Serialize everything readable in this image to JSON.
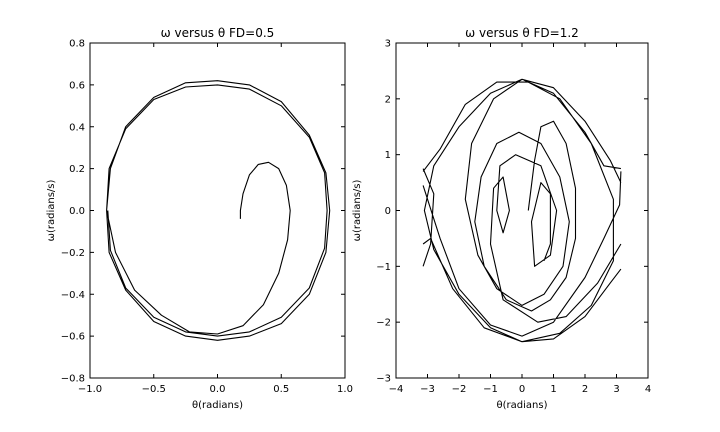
{
  "chart_data": [
    {
      "type": "line",
      "title": "ω   versus   θ   FD=0.5",
      "xlabel": "θ(radians)",
      "ylabel": "ω(radians/s)",
      "xlim": [
        -1.0,
        1.0
      ],
      "ylim": [
        -0.8,
        0.8
      ],
      "xticks": [
        -1.0,
        -0.5,
        0.0,
        0.5,
        1.0
      ],
      "xtick_labels": [
        "−1.0",
        "−0.5",
        "0.0",
        "0.5",
        "1.0"
      ],
      "yticks": [
        -0.8,
        -0.6,
        -0.4,
        -0.2,
        0.0,
        0.2,
        0.4,
        0.6,
        0.8
      ],
      "ytick_labels": [
        "−0.8",
        "−0.6",
        "−0.4",
        "−0.2",
        "0.0",
        "0.2",
        "0.4",
        "0.6",
        "0.8"
      ],
      "grid": false,
      "series": [
        {
          "color": "#000000",
          "description_points": [
            [
              0.18,
              -0.04
            ],
            [
              0.18,
              0.0
            ],
            [
              0.2,
              0.08
            ],
            [
              0.25,
              0.17
            ],
            [
              0.32,
              0.22
            ],
            [
              0.4,
              0.23
            ],
            [
              0.48,
              0.2
            ],
            [
              0.54,
              0.12
            ],
            [
              0.57,
              0.0
            ],
            [
              0.55,
              -0.14
            ],
            [
              0.48,
              -0.3
            ],
            [
              0.36,
              -0.45
            ],
            [
              0.2,
              -0.55
            ],
            [
              0.0,
              -0.59
            ],
            [
              -0.22,
              -0.58
            ],
            [
              -0.44,
              -0.5
            ],
            [
              -0.65,
              -0.38
            ],
            [
              -0.8,
              -0.2
            ],
            [
              -0.87,
              0.0
            ],
            [
              -0.84,
              0.2
            ],
            [
              -0.72,
              0.4
            ],
            [
              -0.5,
              0.54
            ],
            [
              -0.25,
              0.61
            ],
            [
              0.0,
              0.62
            ],
            [
              0.25,
              0.6
            ],
            [
              0.5,
              0.52
            ],
            [
              0.72,
              0.36
            ],
            [
              0.85,
              0.18
            ],
            [
              0.88,
              0.0
            ],
            [
              0.85,
              -0.2
            ],
            [
              0.72,
              -0.4
            ],
            [
              0.5,
              -0.54
            ],
            [
              0.25,
              -0.6
            ],
            [
              0.0,
              -0.62
            ],
            [
              -0.25,
              -0.6
            ],
            [
              -0.5,
              -0.53
            ],
            [
              -0.72,
              -0.38
            ],
            [
              -0.85,
              -0.2
            ],
            [
              -0.87,
              0.0
            ],
            [
              -0.85,
              0.2
            ],
            [
              -0.72,
              0.39
            ],
            [
              -0.5,
              0.53
            ],
            [
              -0.25,
              0.59
            ],
            [
              0.0,
              0.6
            ],
            [
              0.25,
              0.58
            ],
            [
              0.5,
              0.5
            ],
            [
              0.72,
              0.35
            ],
            [
              0.84,
              0.18
            ],
            [
              0.86,
              0.0
            ],
            [
              0.84,
              -0.18
            ],
            [
              0.72,
              -0.37
            ],
            [
              0.5,
              -0.51
            ],
            [
              0.25,
              -0.58
            ],
            [
              0.0,
              -0.6
            ],
            [
              -0.25,
              -0.58
            ],
            [
              -0.5,
              -0.51
            ],
            [
              -0.72,
              -0.37
            ],
            [
              -0.84,
              -0.19
            ],
            [
              -0.86,
              0.0
            ]
          ]
        }
      ]
    },
    {
      "type": "line",
      "title": "ω   versus   θ   FD=1.2",
      "xlabel": "θ(radians)",
      "ylabel": "ω(radians/s)",
      "xlim": [
        -4,
        4
      ],
      "ylim": [
        -3,
        3
      ],
      "xticks": [
        -4,
        -3,
        -2,
        -1,
        0,
        1,
        2,
        3,
        4
      ],
      "xtick_labels": [
        "−4",
        "−3",
        "−2",
        "−1",
        "0",
        "1",
        "2",
        "3",
        "4"
      ],
      "yticks": [
        -3,
        -2,
        -1,
        0,
        1,
        2,
        3
      ],
      "ytick_labels": [
        "−3",
        "−2",
        "−1",
        "0",
        "1",
        "2",
        "3"
      ],
      "grid": false,
      "series": [
        {
          "color": "#000000",
          "description_points": [
            [
              0.2,
              0.0
            ],
            [
              0.4,
              0.9
            ],
            [
              0.6,
              1.5
            ],
            [
              1.0,
              1.6
            ],
            [
              1.4,
              1.2
            ],
            [
              1.7,
              0.4
            ],
            [
              1.7,
              -0.5
            ],
            [
              1.4,
              -1.2
            ],
            [
              0.9,
              -1.6
            ],
            [
              0.3,
              -1.8
            ],
            [
              -0.5,
              -1.6
            ],
            [
              -1.2,
              -1.0
            ],
            [
              -1.5,
              -0.2
            ],
            [
              -1.3,
              0.6
            ],
            [
              -0.8,
              1.2
            ],
            [
              -0.1,
              1.4
            ],
            [
              0.6,
              1.2
            ],
            [
              1.2,
              0.6
            ],
            [
              1.5,
              -0.2
            ],
            [
              1.3,
              -1.0
            ],
            [
              0.7,
              -1.5
            ],
            [
              0.0,
              -1.7
            ],
            [
              -0.8,
              -1.4
            ],
            [
              -1.4,
              -0.8
            ],
            [
              -1.8,
              0.2
            ],
            [
              -1.6,
              1.2
            ],
            [
              -0.9,
              2.0
            ],
            [
              0.0,
              2.35
            ],
            [
              1.0,
              2.1
            ],
            [
              2.0,
              1.4
            ],
            [
              2.6,
              0.8
            ],
            [
              3.14,
              0.75
            ],
            [
              -3.14,
              0.75
            ],
            [
              -2.8,
              0.3
            ],
            [
              -2.9,
              -0.6
            ],
            [
              -3.14,
              -1.0
            ],
            [
              3.14,
              -1.05
            ],
            [
              2.8,
              -1.3
            ],
            [
              2.0,
              -1.9
            ],
            [
              1.0,
              -2.3
            ],
            [
              0.0,
              -2.35
            ],
            [
              -1.0,
              -2.1
            ],
            [
              -2.0,
              -1.5
            ],
            [
              -2.8,
              -0.7
            ],
            [
              -3.1,
              0.0
            ],
            [
              -2.8,
              0.8
            ],
            [
              -2.0,
              1.5
            ],
            [
              -1.0,
              2.1
            ],
            [
              0.0,
              2.35
            ],
            [
              1.0,
              2.2
            ],
            [
              2.0,
              1.6
            ],
            [
              2.8,
              0.9
            ],
            [
              3.14,
              0.5
            ],
            [
              -3.14,
              0.45
            ],
            [
              -2.6,
              -0.5
            ],
            [
              -2.0,
              -1.4
            ],
            [
              -1.0,
              -2.05
            ],
            [
              0.0,
              -2.25
            ],
            [
              1.0,
              -2.0
            ],
            [
              2.0,
              -1.2
            ],
            [
              2.6,
              -0.5
            ],
            [
              3.1,
              0.1
            ],
            [
              3.14,
              0.7
            ],
            [
              -3.14,
              0.7
            ],
            [
              -2.6,
              1.1
            ],
            [
              -1.8,
              1.9
            ],
            [
              -0.8,
              2.3
            ],
            [
              0.2,
              2.3
            ],
            [
              1.2,
              2.0
            ],
            [
              2.2,
              1.2
            ],
            [
              2.9,
              0.2
            ],
            [
              2.9,
              -0.9
            ],
            [
              2.2,
              -1.7
            ],
            [
              1.2,
              -2.2
            ],
            [
              0.0,
              -2.35
            ],
            [
              -1.2,
              -2.1
            ],
            [
              -2.2,
              -1.4
            ],
            [
              -2.9,
              -0.5
            ],
            [
              -3.14,
              -0.6
            ],
            [
              3.14,
              -0.6
            ],
            [
              2.4,
              -1.3
            ],
            [
              1.4,
              -1.9
            ],
            [
              0.5,
              -2.0
            ],
            [
              -0.6,
              -1.6
            ],
            [
              -1.0,
              -0.6
            ],
            [
              -0.9,
              0.4
            ],
            [
              -0.6,
              0.6
            ],
            [
              -0.4,
              0.0
            ],
            [
              -0.6,
              -0.4
            ],
            [
              -0.8,
              0.0
            ],
            [
              -0.7,
              0.8
            ],
            [
              -0.2,
              1.0
            ],
            [
              0.6,
              0.8
            ],
            [
              1.1,
              0.0
            ],
            [
              0.9,
              -0.8
            ],
            [
              0.4,
              -1.0
            ],
            [
              0.3,
              -0.2
            ],
            [
              0.6,
              0.5
            ],
            [
              0.9,
              0.3
            ],
            [
              0.9,
              -0.6
            ],
            [
              0.7,
              -0.9
            ]
          ]
        }
      ]
    }
  ]
}
